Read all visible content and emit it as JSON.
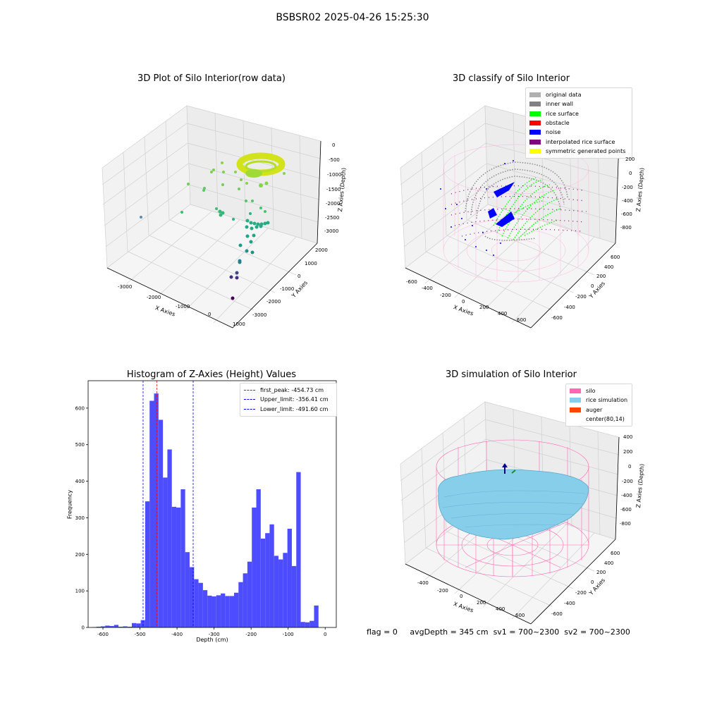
{
  "suptitle": "BSBSR02 2025-04-26 15:25:30",
  "footer": {
    "flag": "flag = 0",
    "avg": "avgDepth = 345 cm",
    "sv1": "sv1 = 700~2300",
    "sv2": "sv2 = 700~2300"
  },
  "chart_data": [
    {
      "type": "scatter",
      "title": "3D Plot of Silo Interior(row data)",
      "xlabel": "X Axies",
      "ylabel": "Y Axies",
      "zlabel": "Z Axies (Depth)",
      "x_ticks": [
        "-3000",
        "-2000",
        "-1000",
        "0",
        "1000"
      ],
      "y_ticks": [
        "-3000",
        "-2000",
        "-1000",
        "0",
        "1000",
        "2000"
      ],
      "z_ticks": [
        "0",
        "-500",
        "-1000",
        "-1500",
        "-2000",
        "-2500",
        "-3000"
      ],
      "colormap": "viridis"
    },
    {
      "type": "scatter",
      "title": "3D classify of Silo Interior",
      "xlabel": "X Axies",
      "ylabel": "Y Axies",
      "zlabel": "Z Axies (Depth)",
      "x_ticks": [
        "-600",
        "-400",
        "-200",
        "0",
        "200",
        "400",
        "600"
      ],
      "y_ticks": [
        "-600",
        "-400",
        "-200",
        "0",
        "200",
        "400",
        "600"
      ],
      "z_ticks": [
        "200",
        "0",
        "-200",
        "-400",
        "-600",
        "-800"
      ],
      "legend": [
        {
          "label": "original data",
          "color": "#b0b0b0"
        },
        {
          "label": "inner wall",
          "color": "#808080"
        },
        {
          "label": "rice surface",
          "color": "#00ff00"
        },
        {
          "label": "obstacle",
          "color": "#ff0000"
        },
        {
          "label": "noise",
          "color": "#0000ff"
        },
        {
          "label": "interpolated rice surface",
          "color": "#800080"
        },
        {
          "label": "symmetric generated points",
          "color": "#ffff00"
        }
      ],
      "legend_position": "top-right"
    },
    {
      "type": "bar",
      "title": "Histogram of Z-Axies (Height) Values",
      "xlabel": "Depth (cm)",
      "ylabel": "Frequency",
      "bin_start": -630,
      "bin_width": 12,
      "values": [
        1,
        2,
        3,
        5,
        4,
        7,
        2,
        3,
        2,
        12,
        11,
        20,
        345,
        620,
        640,
        568,
        410,
        487,
        330,
        328,
        378,
        206,
        165,
        132,
        122,
        102,
        87,
        85,
        88,
        93,
        86,
        86,
        95,
        124,
        148,
        180,
        328,
        378,
        243,
        258,
        282,
        196,
        186,
        204,
        270,
        168,
        425,
        15,
        14,
        18,
        60
      ],
      "xlim": [
        -640,
        30
      ],
      "ylim": [
        0,
        675
      ],
      "x_ticks": [
        -600,
        -500,
        -400,
        -300,
        -200,
        -100,
        0
      ],
      "y_ticks": [
        0,
        100,
        200,
        300,
        400,
        500,
        600
      ],
      "bar_color": "#4d4dff",
      "vlines": [
        {
          "label": "first_peak: -454.73 cm",
          "x": -454.73,
          "color": "#ff0000"
        },
        {
          "label": "Upper_limit: -356.41 cm",
          "x": -356.41,
          "color": "#0000ff"
        },
        {
          "label": "Lower_limit: -491.60 cm",
          "x": -491.6,
          "color": "#0000ff"
        }
      ],
      "legend_position": "top-right"
    },
    {
      "type": "scatter",
      "title": "3D simulation of Silo Interior",
      "xlabel": "X Axies",
      "ylabel": "Y Axies",
      "zlabel": "Z Axies (Depth)",
      "x_ticks": [
        "-400",
        "-200",
        "0",
        "200",
        "400",
        "600"
      ],
      "y_ticks": [
        "-600",
        "-400",
        "-200",
        "0",
        "200",
        "400",
        "600"
      ],
      "z_ticks": [
        "400",
        "200",
        "0",
        "-200",
        "-400",
        "-600",
        "-800"
      ],
      "legend": [
        {
          "label": "silo",
          "color": "#ff69b4"
        },
        {
          "label": "rice simulation",
          "color": "#87ceeb"
        },
        {
          "label": "auger",
          "color": "#ff4500"
        },
        {
          "label": "center(80,14)",
          "color": "#ffffff"
        }
      ],
      "legend_position": "top-right"
    }
  ]
}
